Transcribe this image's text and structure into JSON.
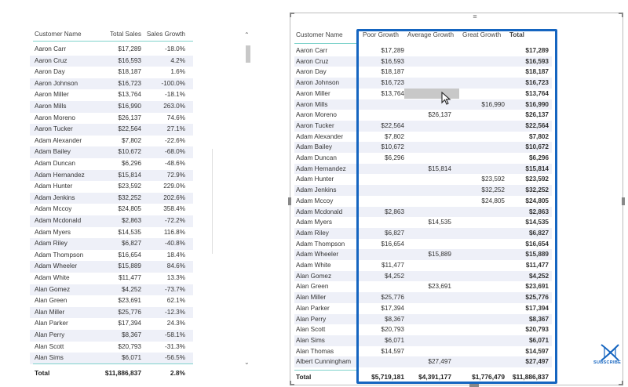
{
  "left_table": {
    "headers": [
      "Customer Name",
      "Total Sales",
      "Sales Growth"
    ],
    "rows": [
      [
        "Aaron Carr",
        "$17,289",
        "-18.0%"
      ],
      [
        "Aaron Cruz",
        "$16,593",
        "4.2%"
      ],
      [
        "Aaron Day",
        "$18,187",
        "1.6%"
      ],
      [
        "Aaron Johnson",
        "$16,723",
        "-100.0%"
      ],
      [
        "Aaron Miller",
        "$13,764",
        "-18.1%"
      ],
      [
        "Aaron Mills",
        "$16,990",
        "263.0%"
      ],
      [
        "Aaron Moreno",
        "$26,137",
        "74.6%"
      ],
      [
        "Aaron Tucker",
        "$22,564",
        "27.1%"
      ],
      [
        "Adam Alexander",
        "$7,802",
        "-22.6%"
      ],
      [
        "Adam Bailey",
        "$10,672",
        "-68.0%"
      ],
      [
        "Adam Duncan",
        "$6,296",
        "-48.6%"
      ],
      [
        "Adam Hernandez",
        "$15,814",
        "72.9%"
      ],
      [
        "Adam Hunter",
        "$23,592",
        "229.0%"
      ],
      [
        "Adam Jenkins",
        "$32,252",
        "202.6%"
      ],
      [
        "Adam Mccoy",
        "$24,805",
        "358.4%"
      ],
      [
        "Adam Mcdonald",
        "$2,863",
        "-72.2%"
      ],
      [
        "Adam Myers",
        "$14,535",
        "116.8%"
      ],
      [
        "Adam Riley",
        "$6,827",
        "-40.8%"
      ],
      [
        "Adam Thompson",
        "$16,654",
        "18.4%"
      ],
      [
        "Adam Wheeler",
        "$15,889",
        "84.6%"
      ],
      [
        "Adam White",
        "$11,477",
        "13.3%"
      ],
      [
        "Alan Gomez",
        "$4,252",
        "-73.7%"
      ],
      [
        "Alan Green",
        "$23,691",
        "62.1%"
      ],
      [
        "Alan Miller",
        "$25,776",
        "-12.3%"
      ],
      [
        "Alan Parker",
        "$17,394",
        "24.3%"
      ],
      [
        "Alan Perry",
        "$8,367",
        "-58.1%"
      ],
      [
        "Alan Scott",
        "$20,793",
        "-31.3%"
      ],
      [
        "Alan Sims",
        "$6,071",
        "-56.5%"
      ]
    ],
    "total": [
      "Total",
      "$11,886,837",
      "2.8%"
    ]
  },
  "right_table": {
    "headers": [
      "Customer Name",
      "Poor Growth",
      "Average Growth",
      "Great Growth",
      "Total"
    ],
    "rows": [
      [
        "Aaron Carr",
        "$17,289",
        "",
        "",
        "$17,289"
      ],
      [
        "Aaron Cruz",
        "$16,593",
        "",
        "",
        "$16,593"
      ],
      [
        "Aaron Day",
        "$18,187",
        "",
        "",
        "$18,187"
      ],
      [
        "Aaron Johnson",
        "$16,723",
        "",
        "",
        "$16,723"
      ],
      [
        "Aaron Miller",
        "$13,764",
        "",
        "",
        "$13,764"
      ],
      [
        "Aaron Mills",
        "",
        "",
        "$16,990",
        "$16,990"
      ],
      [
        "Aaron Moreno",
        "",
        "$26,137",
        "",
        "$26,137"
      ],
      [
        "Aaron Tucker",
        "$22,564",
        "",
        "",
        "$22,564"
      ],
      [
        "Adam Alexander",
        "$7,802",
        "",
        "",
        "$7,802"
      ],
      [
        "Adam Bailey",
        "$10,672",
        "",
        "",
        "$10,672"
      ],
      [
        "Adam Duncan",
        "$6,296",
        "",
        "",
        "$6,296"
      ],
      [
        "Adam Hernandez",
        "",
        "$15,814",
        "",
        "$15,814"
      ],
      [
        "Adam Hunter",
        "",
        "",
        "$23,592",
        "$23,592"
      ],
      [
        "Adam Jenkins",
        "",
        "",
        "$32,252",
        "$32,252"
      ],
      [
        "Adam Mccoy",
        "",
        "",
        "$24,805",
        "$24,805"
      ],
      [
        "Adam Mcdonald",
        "$2,863",
        "",
        "",
        "$2,863"
      ],
      [
        "Adam Myers",
        "",
        "$14,535",
        "",
        "$14,535"
      ],
      [
        "Adam Riley",
        "$6,827",
        "",
        "",
        "$6,827"
      ],
      [
        "Adam Thompson",
        "$16,654",
        "",
        "",
        "$16,654"
      ],
      [
        "Adam Wheeler",
        "",
        "$15,889",
        "",
        "$15,889"
      ],
      [
        "Adam White",
        "$11,477",
        "",
        "",
        "$11,477"
      ],
      [
        "Alan Gomez",
        "$4,252",
        "",
        "",
        "$4,252"
      ],
      [
        "Alan Green",
        "",
        "$23,691",
        "",
        "$23,691"
      ],
      [
        "Alan Miller",
        "$25,776",
        "",
        "",
        "$25,776"
      ],
      [
        "Alan Parker",
        "$17,394",
        "",
        "",
        "$17,394"
      ],
      [
        "Alan Perry",
        "$8,367",
        "",
        "",
        "$8,367"
      ],
      [
        "Alan Scott",
        "$20,793",
        "",
        "",
        "$20,793"
      ],
      [
        "Alan Sims",
        "$6,071",
        "",
        "",
        "$6,071"
      ],
      [
        "Alan Thomas",
        "$14,597",
        "",
        "",
        "$14,597"
      ],
      [
        "Albert Cunningham",
        "",
        "$27,497",
        "",
        "$27,497"
      ]
    ],
    "total": [
      "Total",
      "$5,719,181",
      "$4,391,177",
      "$1,776,479",
      "$11,886,837"
    ]
  },
  "subscribe": {
    "label": "SUBSCRIBE"
  },
  "colors": {
    "highlight": "#1565c0",
    "stripe": "#eef0f8",
    "accent_line": "#7fd3cc"
  },
  "icons": {
    "scroll_up": "chevron-up-icon",
    "scroll_down": "chevron-down-icon",
    "cursor": "mouse-pointer-icon",
    "subscribe": "dna-logo-icon"
  }
}
